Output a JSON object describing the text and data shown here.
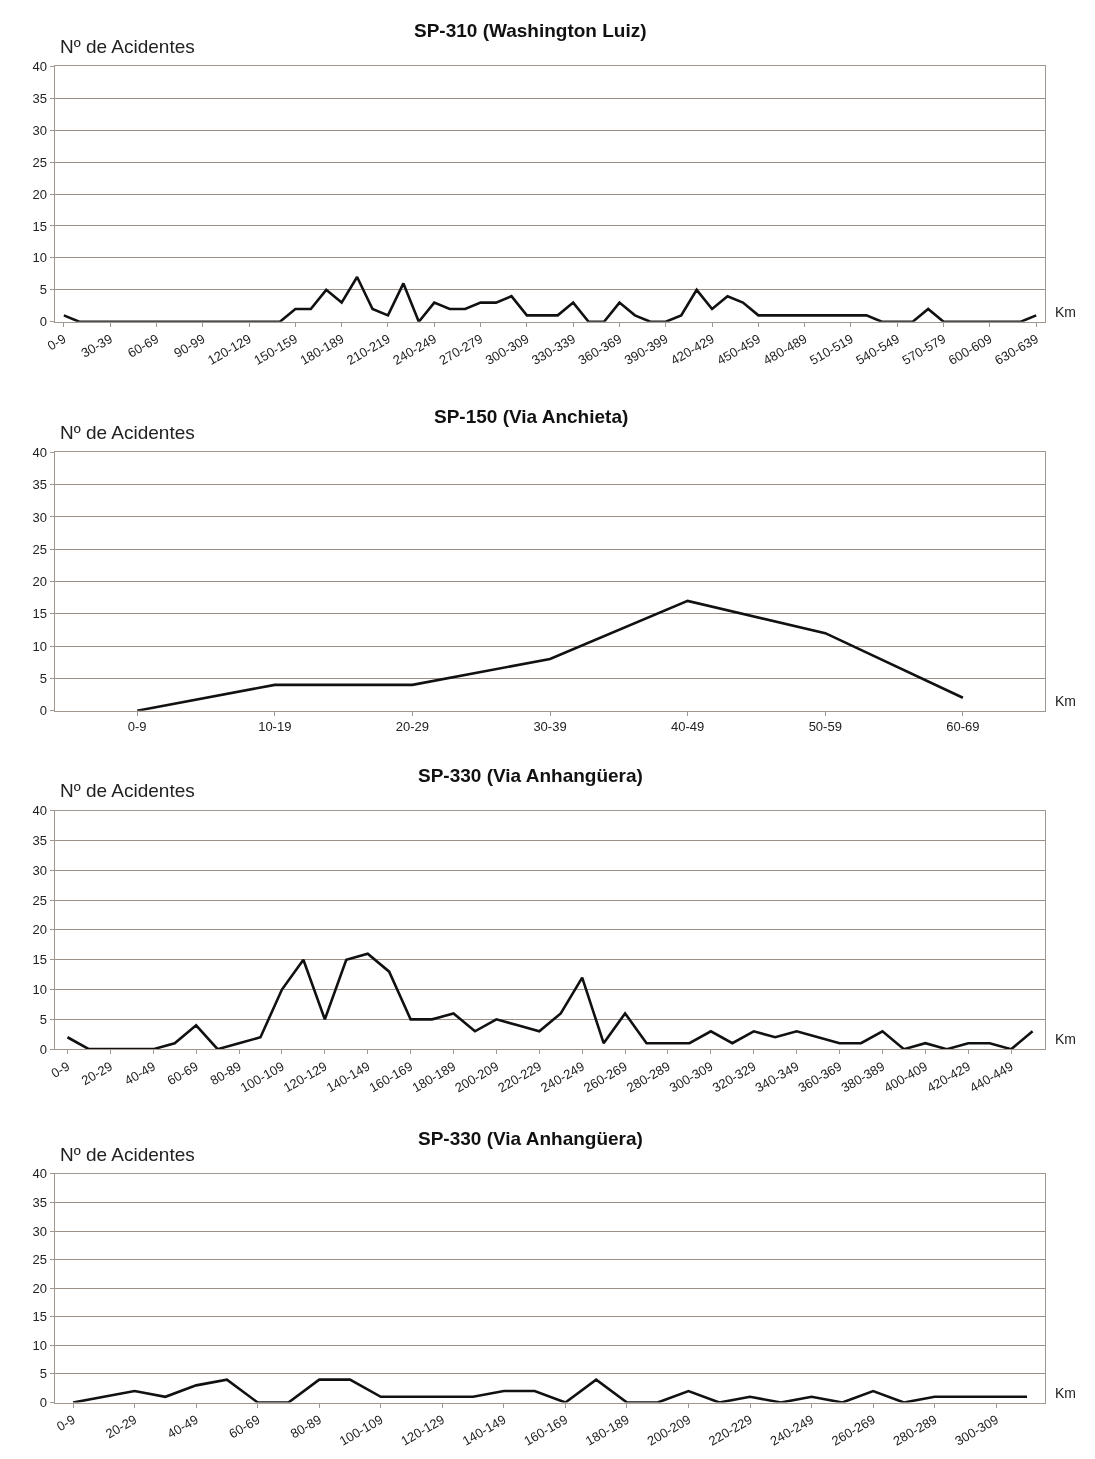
{
  "chart_data": [
    {
      "type": "line",
      "title": "SP-310 (Washington Luiz)",
      "ylabel": "Nº de Acidentes",
      "xlabel": "Km",
      "categories": [
        "0-9",
        null,
        null,
        "30-39",
        null,
        null,
        "60-69",
        null,
        null,
        "90-99",
        null,
        null,
        "120-129",
        null,
        null,
        "150-159",
        null,
        null,
        "180-189",
        null,
        null,
        "210-219",
        null,
        null,
        "240-249",
        null,
        null,
        "270-279",
        null,
        null,
        "300-309",
        null,
        null,
        "330-339",
        null,
        null,
        "360-369",
        null,
        null,
        "390-399",
        null,
        null,
        "420-429",
        null,
        null,
        "450-459",
        null,
        null,
        "480-489",
        null,
        null,
        "510-519",
        null,
        null,
        "540-549",
        null,
        null,
        "570-579",
        null,
        null,
        "600-609",
        null,
        null,
        "630-639"
      ],
      "series": [
        {
          "color": "#111111",
          "values": [
            1,
            0,
            0,
            0,
            0,
            0,
            0,
            0,
            0,
            0,
            0,
            0,
            0,
            0,
            0,
            2,
            2,
            5,
            3,
            7,
            2,
            1,
            6,
            0,
            3,
            2,
            2,
            3,
            3,
            4,
            1,
            1,
            1,
            3,
            0,
            0,
            3,
            1,
            0,
            0,
            1,
            5,
            2,
            4,
            3,
            1,
            1,
            1,
            1,
            1,
            1,
            1,
            1,
            0,
            0,
            0,
            2,
            0,
            0,
            0,
            0,
            0,
            0,
            1
          ]
        }
      ],
      "ylim": [
        0,
        40
      ],
      "yticks": [
        0,
        5,
        10,
        15,
        20,
        25,
        30,
        35,
        40
      ],
      "grid": "y"
    },
    {
      "type": "line",
      "title": "SP-150 (Via Anchieta)",
      "ylabel": "Nº de Acidentes",
      "xlabel": "Km",
      "categories": [
        "0-9",
        "10-19",
        "20-29",
        "30-39",
        "40-49",
        "50-59",
        "60-69"
      ],
      "series": [
        {
          "color": "#111111",
          "values": [
            0,
            4,
            4,
            8,
            17,
            12,
            2
          ]
        }
      ],
      "ylim": [
        0,
        40
      ],
      "yticks": [
        0,
        5,
        10,
        15,
        20,
        25,
        30,
        35,
        40
      ],
      "grid": "y"
    },
    {
      "type": "line",
      "title": "SP-330 (Via Anhangüera)",
      "ylabel": "Nº de Acidentes",
      "xlabel": "Km",
      "categories": [
        "0-9",
        null,
        "20-29",
        null,
        "40-49",
        null,
        "60-69",
        null,
        "80-89",
        null,
        "100-109",
        null,
        "120-129",
        null,
        "140-149",
        null,
        "160-169",
        null,
        "180-189",
        null,
        "200-209",
        null,
        "220-229",
        null,
        "240-249",
        null,
        "260-269",
        null,
        "280-289",
        null,
        "300-309",
        null,
        "320-329",
        null,
        "340-349",
        null,
        "360-369",
        null,
        "380-389",
        null,
        "400-409",
        null,
        "420-429",
        null,
        "440-449",
        null
      ],
      "series": [
        {
          "color": "#111111",
          "values": [
            2,
            0,
            0,
            0,
            0,
            1,
            4,
            0,
            1,
            2,
            10,
            15,
            5,
            15,
            16,
            13,
            5,
            5,
            6,
            3,
            5,
            4,
            3,
            6,
            12,
            1,
            6,
            1,
            1,
            1,
            3,
            1,
            3,
            2,
            3,
            2,
            1,
            1,
            3,
            0,
            1,
            0,
            1,
            1,
            0,
            3
          ]
        }
      ],
      "ylim": [
        0,
        40
      ],
      "yticks": [
        0,
        5,
        10,
        15,
        20,
        25,
        30,
        35,
        40
      ],
      "grid": "y"
    },
    {
      "type": "line",
      "title": "SP-330 (Via Anhangüera)",
      "ylabel": "Nº de Acidentes",
      "xlabel": "Km",
      "categories": [
        "0-9",
        null,
        "20-29",
        null,
        "40-49",
        null,
        "60-69",
        null,
        "80-89",
        null,
        "100-109",
        null,
        "120-129",
        null,
        "140-149",
        null,
        "160-169",
        null,
        "180-189",
        null,
        "200-209",
        null,
        "220-229",
        null,
        "240-249",
        null,
        "260-269",
        null,
        "280-289",
        null,
        "300-309",
        null
      ],
      "series": [
        {
          "color": "#111111",
          "values": [
            0,
            1,
            2,
            1,
            3,
            4,
            0,
            0,
            4,
            4,
            1,
            1,
            1,
            1,
            2,
            2,
            0,
            4,
            0,
            0,
            2,
            0,
            1,
            0,
            1,
            0,
            2,
            0,
            1,
            1,
            1,
            1
          ]
        }
      ],
      "ylim": [
        0,
        40
      ],
      "yticks": [
        0,
        5,
        10,
        15,
        20,
        25,
        30,
        35,
        40
      ],
      "grid": "y"
    }
  ]
}
